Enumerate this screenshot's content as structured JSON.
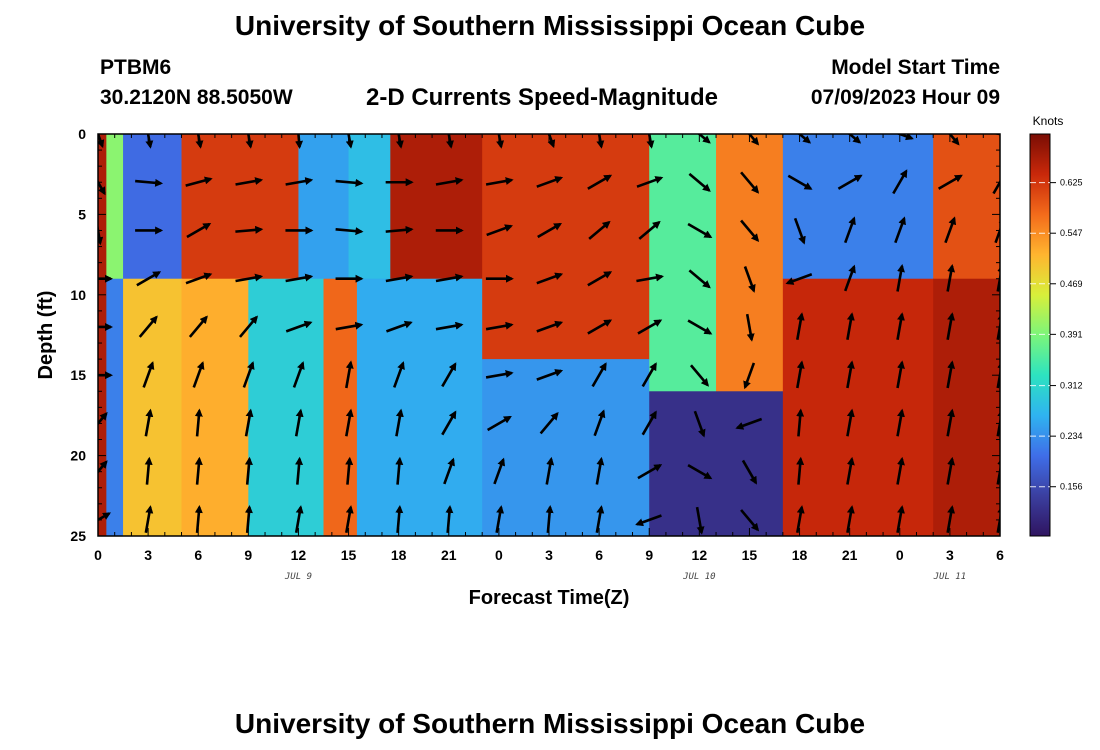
{
  "header": {
    "title": "University of Southern Mississippi Ocean Cube",
    "station": "PTBM6",
    "coordinates": "30.2120N  88.5050W",
    "plot_title": "2-D Currents Speed-Magnitude",
    "model_label": "Model Start Time",
    "model_time": "07/09/2023 Hour 09"
  },
  "footer": {
    "title": "University of Southern Mississippi Ocean Cube"
  },
  "chart_data": {
    "type": "heatmap",
    "title": "2-D Currents Speed-Magnitude",
    "xlabel": "Forecast Time(Z)",
    "ylabel": "Depth (ft)",
    "x_tick_labels": [
      "0",
      "3",
      "6",
      "9",
      "12",
      "15",
      "18",
      "21",
      "0",
      "3",
      "6",
      "9",
      "12",
      "15",
      "18",
      "21",
      "0",
      "3",
      "6"
    ],
    "x_hours": [
      0,
      3,
      6,
      9,
      12,
      15,
      18,
      21,
      24,
      27,
      30,
      33,
      36,
      39,
      42,
      45,
      48,
      51,
      54
    ],
    "x_range": [
      0,
      54
    ],
    "day_labels": [
      {
        "text": "JUL 9",
        "hour": 12
      },
      {
        "text": "JUL 10",
        "hour": 36
      },
      {
        "text": "JUL 11",
        "hour": 51
      }
    ],
    "y_tick_labels": [
      "0",
      "5",
      "10",
      "15",
      "20",
      "25"
    ],
    "y_values": [
      0,
      5,
      10,
      15,
      20,
      25
    ],
    "y_range": [
      0,
      25
    ],
    "y_inverted": true,
    "colorbar": {
      "unit": "Knots",
      "ticks": [
        "0.625",
        "0.547",
        "0.469",
        "0.391",
        "0.312",
        "0.234",
        "0.156"
      ],
      "tick_values": [
        0.625,
        0.547,
        0.469,
        0.391,
        0.312,
        0.234,
        0.156
      ],
      "range": [
        0.08,
        0.7
      ],
      "colors": [
        "#2f1460",
        "#3b3fa0",
        "#3f6ee8",
        "#2fb3f0",
        "#2de3c0",
        "#7cf57a",
        "#d8ef3a",
        "#ffb52f",
        "#f36b1b",
        "#c9280a",
        "#7a0d04"
      ]
    },
    "speed_blocks": [
      {
        "x": [
          0,
          0.5
        ],
        "y": [
          0,
          25
        ],
        "v": 0.66
      },
      {
        "x": [
          0.5,
          1.5
        ],
        "y": [
          0,
          9
        ],
        "v": 0.4
      },
      {
        "x": [
          0.5,
          1.5
        ],
        "y": [
          9,
          25
        ],
        "v": 0.22
      },
      {
        "x": [
          1.5,
          5
        ],
        "y": [
          0,
          9
        ],
        "v": 0.2
      },
      {
        "x": [
          5,
          12
        ],
        "y": [
          0,
          9
        ],
        "v": 0.62
      },
      {
        "x": [
          12,
          15
        ],
        "y": [
          0,
          9
        ],
        "v": 0.25
      },
      {
        "x": [
          15,
          17.5
        ],
        "y": [
          0,
          9
        ],
        "v": 0.28
      },
      {
        "x": [
          17.5,
          23
        ],
        "y": [
          0,
          9
        ],
        "v": 0.66
      },
      {
        "x": [
          1.5,
          5
        ],
        "y": [
          9,
          25
        ],
        "v": 0.5
      },
      {
        "x": [
          5,
          9
        ],
        "y": [
          9,
          25
        ],
        "v": 0.52
      },
      {
        "x": [
          9,
          13.5
        ],
        "y": [
          9,
          25
        ],
        "v": 0.3
      },
      {
        "x": [
          13.5,
          15.5
        ],
        "y": [
          9,
          25
        ],
        "v": 0.58
      },
      {
        "x": [
          15.5,
          23
        ],
        "y": [
          9,
          25
        ],
        "v": 0.26
      },
      {
        "x": [
          23,
          33
        ],
        "y": [
          0,
          14
        ],
        "v": 0.62
      },
      {
        "x": [
          23,
          33
        ],
        "y": [
          14,
          25
        ],
        "v": 0.24
      },
      {
        "x": [
          33,
          37
        ],
        "y": [
          0,
          16
        ],
        "v": 0.36
      },
      {
        "x": [
          37,
          41
        ],
        "y": [
          0,
          16
        ],
        "v": 0.56
      },
      {
        "x": [
          33,
          41
        ],
        "y": [
          16,
          25
        ],
        "v": 0.12
      },
      {
        "x": [
          41,
          50
        ],
        "y": [
          0,
          9
        ],
        "v": 0.22
      },
      {
        "x": [
          50,
          54
        ],
        "y": [
          0,
          9
        ],
        "v": 0.6
      },
      {
        "x": [
          41,
          50
        ],
        "y": [
          9,
          25
        ],
        "v": 0.64
      },
      {
        "x": [
          50,
          54
        ],
        "y": [
          9,
          25
        ],
        "v": 0.66
      }
    ],
    "vector_rows_ft": [
      0,
      3,
      6,
      9,
      12,
      15,
      18,
      21,
      24
    ],
    "vector_hours": [
      0,
      3,
      6,
      9,
      12,
      15,
      18,
      21,
      24,
      27,
      30,
      33,
      36,
      39,
      42,
      45,
      48,
      51,
      54
    ],
    "vector_directions_deg": [
      [
        160,
        170,
        170,
        170,
        175,
        170,
        170,
        170,
        170,
        160,
        170,
        170,
        130,
        140,
        130,
        130,
        110,
        140,
        100
      ],
      [
        150,
        95,
        75,
        80,
        80,
        95,
        90,
        80,
        80,
        70,
        60,
        70,
        130,
        140,
        120,
        60,
        30,
        60,
        30
      ],
      [
        170,
        90,
        60,
        85,
        90,
        95,
        85,
        90,
        70,
        60,
        50,
        50,
        120,
        140,
        160,
        20,
        20,
        20,
        20
      ],
      [
        90,
        60,
        70,
        80,
        80,
        90,
        80,
        80,
        90,
        70,
        60,
        80,
        130,
        160,
        250,
        20,
        10,
        10,
        10
      ],
      [
        90,
        40,
        40,
        40,
        70,
        80,
        70,
        80,
        80,
        70,
        60,
        60,
        120,
        170,
        10,
        10,
        10,
        10,
        10
      ],
      [
        90,
        20,
        20,
        20,
        20,
        10,
        20,
        30,
        80,
        70,
        30,
        30,
        140,
        200,
        10,
        10,
        10,
        10,
        10
      ],
      [
        40,
        10,
        5,
        10,
        10,
        10,
        10,
        30,
        60,
        40,
        20,
        30,
        160,
        250,
        5,
        10,
        10,
        10,
        10
      ],
      [
        40,
        5,
        5,
        5,
        5,
        5,
        5,
        20,
        20,
        10,
        10,
        60,
        120,
        150,
        5,
        10,
        10,
        10,
        10
      ],
      [
        60,
        10,
        5,
        5,
        10,
        10,
        5,
        5,
        10,
        5,
        10,
        250,
        170,
        140,
        10,
        10,
        10,
        10,
        10
      ]
    ]
  }
}
